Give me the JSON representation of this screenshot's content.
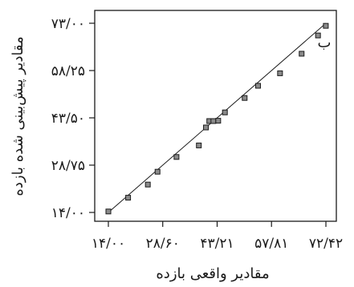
{
  "chart_data": {
    "type": "scatter",
    "panel_label": "ب",
    "xlabel": "مقادیر واقعی بازده",
    "ylabel": "مقادیر پیش‌بینی شده بازده",
    "xlim": [
      14.0,
      72.42
    ],
    "ylim": [
      14.0,
      73.0
    ],
    "grid": false,
    "x_ticks": [
      {
        "value": 14.0,
        "label": "۱۴/۰۰"
      },
      {
        "value": 28.6,
        "label": "۲۸/۶۰"
      },
      {
        "value": 43.21,
        "label": "۴۳/۲۱"
      },
      {
        "value": 57.81,
        "label": "۵۷/۸۱"
      },
      {
        "value": 72.42,
        "label": "۷۲/۴۲"
      }
    ],
    "y_ticks": [
      {
        "value": 14.0,
        "label": "۱۴/۰۰"
      },
      {
        "value": 28.75,
        "label": "۲۸/۷۵"
      },
      {
        "value": 43.5,
        "label": "۴۳/۵۰"
      },
      {
        "value": 58.25,
        "label": "۵۸/۲۵"
      },
      {
        "value": 73.0,
        "label": "۷۳/۰۰"
      }
    ],
    "fit_line": {
      "x": [
        14.0,
        72.42
      ],
      "y": [
        14.0,
        73.0
      ]
    },
    "points": [
      {
        "x": 14.0,
        "y": 14.3
      },
      {
        "x": 19.3,
        "y": 18.6
      },
      {
        "x": 24.6,
        "y": 22.7
      },
      {
        "x": 27.2,
        "y": 26.7
      },
      {
        "x": 32.3,
        "y": 31.3
      },
      {
        "x": 38.3,
        "y": 34.9
      },
      {
        "x": 40.2,
        "y": 40.5
      },
      {
        "x": 41.1,
        "y": 42.5
      },
      {
        "x": 42.2,
        "y": 42.5
      },
      {
        "x": 43.5,
        "y": 42.6
      },
      {
        "x": 45.3,
        "y": 45.2
      },
      {
        "x": 50.6,
        "y": 49.7
      },
      {
        "x": 54.2,
        "y": 53.5
      },
      {
        "x": 60.1,
        "y": 57.4
      },
      {
        "x": 65.9,
        "y": 63.5
      },
      {
        "x": 70.3,
        "y": 69.2
      },
      {
        "x": 72.4,
        "y": 72.2
      }
    ]
  }
}
